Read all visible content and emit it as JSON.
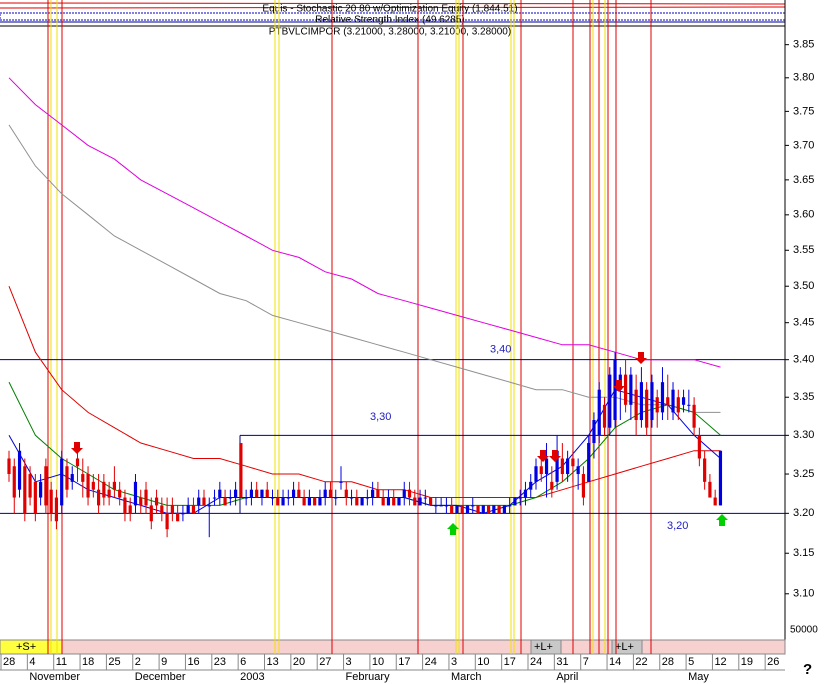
{
  "chart_data": {
    "type": "candlestick",
    "header": [
      "Equis - Stochastic 20 80 w/Optimization Equity (1,844.51)",
      "Relative Strength Index (49.6285)",
      "PTBVLCIMPOR (3.21000, 3.28000, 3.21000, 3.28000)"
    ],
    "categories": [
      "28",
      "4",
      "11",
      "18",
      "25",
      "2",
      "9",
      "16",
      "23",
      "6",
      "13",
      "20",
      "27",
      "3",
      "10",
      "17",
      "24",
      "3",
      "10",
      "17",
      "24",
      "31",
      "7",
      "14",
      "22",
      "28",
      "5",
      "12",
      "19",
      "26"
    ],
    "months": [
      null,
      "November",
      null,
      null,
      null,
      "December",
      null,
      null,
      null,
      "2003",
      null,
      null,
      null,
      "February",
      null,
      null,
      null,
      "March",
      null,
      null,
      null,
      "April",
      null,
      null,
      null,
      null,
      "May",
      null,
      null,
      null
    ],
    "log_scale": true,
    "ylim": [
      3.05,
      3.88
    ],
    "yticks": [
      3.85,
      {
        "value": 3.8,
        "label": "3.80"
      },
      3.75,
      {
        "value": 3.7,
        "label": "3.70"
      },
      3.65,
      {
        "value": 3.6,
        "label": "3.60"
      },
      3.55,
      {
        "value": 3.5,
        "label": "3.50"
      },
      3.45,
      {
        "value": 3.4,
        "label": "3.40"
      },
      3.35,
      {
        "value": 3.3,
        "label": "3.30"
      },
      3.25,
      {
        "value": 3.2,
        "label": "3.20"
      },
      3.15,
      {
        "value": 3.1,
        "label": "3.10"
      }
    ],
    "up_color": "#0000e0",
    "down_color": "#e00000",
    "ohlc": [
      [
        3.27,
        3.28,
        3.24,
        3.25
      ],
      [
        3.26,
        3.27,
        3.2,
        3.22
      ],
      [
        3.23,
        3.29,
        3.22,
        3.28
      ],
      [
        3.26,
        3.27,
        3.19,
        3.2
      ],
      [
        3.25,
        3.26,
        3.21,
        3.22
      ],
      [
        3.24,
        3.25,
        3.19,
        3.2
      ],
      [
        3.22,
        3.25,
        3.21,
        3.24
      ],
      [
        3.26,
        3.27,
        3.2,
        3.21
      ],
      [
        3.23,
        3.24,
        3.19,
        3.2
      ],
      [
        3.22,
        3.23,
        3.18,
        3.19
      ],
      [
        3.21,
        3.28,
        3.2,
        3.27
      ],
      [
        3.26,
        3.27,
        3.22,
        3.23
      ],
      [
        3.24,
        3.26,
        3.23,
        3.25
      ],
      [
        3.27,
        3.29,
        3.24,
        3.26
      ],
      [
        3.25,
        3.27,
        3.22,
        3.24
      ],
      [
        3.25,
        3.26,
        3.21,
        3.22
      ],
      [
        3.24,
        3.25,
        3.22,
        3.23
      ],
      [
        3.23,
        3.25,
        3.2,
        3.21
      ],
      [
        3.24,
        3.25,
        3.21,
        3.22
      ],
      [
        3.23,
        3.24,
        3.21,
        3.22
      ],
      [
        3.24,
        3.26,
        3.22,
        3.23
      ],
      [
        3.23,
        3.24,
        3.21,
        3.22
      ],
      [
        3.22,
        3.23,
        3.19,
        3.2
      ],
      [
        3.21,
        3.22,
        3.19,
        3.2
      ],
      [
        3.21,
        3.25,
        3.2,
        3.24
      ],
      [
        3.22,
        3.23,
        3.2,
        3.21
      ],
      [
        3.23,
        3.24,
        3.2,
        3.21
      ],
      [
        3.21,
        3.22,
        3.18,
        3.19
      ],
      [
        3.22,
        3.23,
        3.2,
        3.21
      ],
      [
        3.21,
        3.22,
        3.19,
        3.2
      ],
      [
        3.2,
        3.22,
        3.17,
        3.18
      ],
      [
        3.21,
        3.22,
        3.19,
        3.2
      ],
      [
        3.2,
        3.21,
        3.19,
        3.19
      ],
      [
        3.2,
        3.21,
        3.19,
        3.2
      ],
      [
        3.2,
        3.22,
        3.2,
        3.21
      ],
      [
        3.21,
        3.22,
        3.2,
        3.2
      ],
      [
        3.21,
        3.23,
        3.2,
        3.22
      ],
      [
        3.22,
        3.23,
        3.21,
        3.21
      ],
      [
        3.21,
        3.22,
        3.17,
        3.21
      ],
      [
        3.22,
        3.23,
        3.21,
        3.22
      ],
      [
        3.22,
        3.24,
        3.21,
        3.23
      ],
      [
        3.22,
        3.23,
        3.21,
        3.21
      ],
      [
        3.22,
        3.23,
        3.21,
        3.22
      ],
      [
        3.22,
        3.24,
        3.21,
        3.23
      ],
      [
        3.29,
        3.29,
        3.22,
        3.22
      ],
      [
        3.22,
        3.23,
        3.21,
        3.22
      ],
      [
        3.22,
        3.24,
        3.21,
        3.23
      ],
      [
        3.23,
        3.24,
        3.22,
        3.22
      ],
      [
        3.22,
        3.23,
        3.21,
        3.23
      ],
      [
        3.23,
        3.24,
        3.22,
        3.22
      ],
      [
        3.22,
        3.23,
        3.21,
        3.22
      ],
      [
        3.22,
        3.23,
        3.21,
        3.21
      ],
      [
        3.21,
        3.23,
        3.21,
        3.22
      ],
      [
        3.22,
        3.23,
        3.21,
        3.22
      ],
      [
        3.22,
        3.24,
        3.21,
        3.23
      ],
      [
        3.23,
        3.24,
        3.22,
        3.22
      ],
      [
        3.22,
        3.23,
        3.21,
        3.21
      ],
      [
        3.21,
        3.23,
        3.21,
        3.22
      ],
      [
        3.22,
        3.22,
        3.21,
        3.21
      ],
      [
        3.21,
        3.23,
        3.21,
        3.22
      ],
      [
        3.22,
        3.24,
        3.21,
        3.23
      ],
      [
        3.23,
        3.24,
        3.22,
        3.22
      ],
      [
        3.22,
        3.23,
        3.21,
        3.22
      ],
      [
        3.24,
        3.26,
        3.23,
        3.24
      ],
      [
        3.23,
        3.24,
        3.21,
        3.22
      ],
      [
        3.22,
        3.23,
        3.21,
        3.22
      ],
      [
        3.22,
        3.23,
        3.21,
        3.21
      ],
      [
        3.21,
        3.22,
        3.21,
        3.22
      ],
      [
        3.22,
        3.23,
        3.21,
        3.22
      ],
      [
        3.22,
        3.24,
        3.21,
        3.23
      ],
      [
        3.23,
        3.24,
        3.22,
        3.22
      ],
      [
        3.22,
        3.23,
        3.21,
        3.21
      ],
      [
        3.21,
        3.23,
        3.21,
        3.22
      ],
      [
        3.22,
        3.23,
        3.21,
        3.21
      ],
      [
        3.21,
        3.22,
        3.21,
        3.22
      ],
      [
        3.22,
        3.24,
        3.21,
        3.23
      ],
      [
        3.23,
        3.24,
        3.21,
        3.22
      ],
      [
        3.22,
        3.23,
        3.21,
        3.21
      ],
      [
        3.21,
        3.23,
        3.21,
        3.22
      ],
      [
        3.22,
        3.23,
        3.21,
        3.22
      ],
      [
        3.22,
        3.22,
        3.21,
        3.21
      ],
      [
        3.21,
        3.22,
        3.2,
        3.21
      ],
      [
        3.21,
        3.22,
        3.21,
        3.21
      ],
      [
        3.21,
        3.22,
        3.2,
        3.21
      ],
      [
        3.21,
        3.22,
        3.2,
        3.2
      ],
      [
        3.2,
        3.21,
        3.2,
        3.21
      ],
      [
        3.21,
        3.21,
        3.2,
        3.2
      ],
      [
        3.2,
        3.21,
        3.2,
        3.21
      ],
      [
        3.21,
        3.22,
        3.2,
        3.21
      ],
      [
        3.21,
        3.21,
        3.2,
        3.2
      ],
      [
        3.2,
        3.21,
        3.2,
        3.21
      ],
      [
        3.21,
        3.21,
        3.2,
        3.2
      ],
      [
        3.2,
        3.21,
        3.2,
        3.21
      ],
      [
        3.21,
        3.21,
        3.2,
        3.2
      ],
      [
        3.2,
        3.21,
        3.2,
        3.21
      ],
      [
        3.21,
        3.22,
        3.2,
        3.21
      ],
      [
        3.21,
        3.22,
        3.21,
        3.22
      ],
      [
        3.22,
        3.23,
        3.21,
        3.22
      ],
      [
        3.22,
        3.24,
        3.21,
        3.23
      ],
      [
        3.23,
        3.25,
        3.22,
        3.24
      ],
      [
        3.24,
        3.27,
        3.23,
        3.26
      ],
      [
        3.26,
        3.28,
        3.24,
        3.25
      ],
      [
        3.25,
        3.29,
        3.22,
        3.27
      ],
      [
        3.24,
        3.26,
        3.22,
        3.23
      ],
      [
        3.24,
        3.3,
        3.23,
        3.28
      ],
      [
        3.27,
        3.29,
        3.24,
        3.25
      ],
      [
        3.25,
        3.28,
        3.24,
        3.27
      ],
      [
        3.27,
        3.28,
        3.24,
        3.26
      ],
      [
        3.25,
        3.27,
        3.23,
        3.26
      ],
      [
        3.25,
        3.26,
        3.21,
        3.22
      ],
      [
        3.24,
        3.3,
        3.24,
        3.29
      ],
      [
        3.29,
        3.33,
        3.27,
        3.32
      ],
      [
        3.3,
        3.37,
        3.29,
        3.36
      ],
      [
        3.34,
        3.35,
        3.3,
        3.31
      ],
      [
        3.31,
        3.39,
        3.3,
        3.38
      ],
      [
        3.32,
        3.41,
        3.31,
        3.4
      ],
      [
        3.36,
        3.39,
        3.32,
        3.38
      ],
      [
        3.38,
        3.4,
        3.33,
        3.34
      ],
      [
        3.34,
        3.39,
        3.32,
        3.38
      ],
      [
        3.36,
        3.38,
        3.3,
        3.32
      ],
      [
        3.32,
        3.39,
        3.31,
        3.37
      ],
      [
        3.36,
        3.37,
        3.3,
        3.31
      ],
      [
        3.32,
        3.38,
        3.31,
        3.37
      ],
      [
        3.35,
        3.36,
        3.31,
        3.33
      ],
      [
        3.33,
        3.39,
        3.32,
        3.37
      ],
      [
        3.35,
        3.38,
        3.32,
        3.34
      ],
      [
        3.33,
        3.37,
        3.32,
        3.36
      ],
      [
        3.35,
        3.36,
        3.32,
        3.33
      ],
      [
        3.34,
        3.36,
        3.33,
        3.35
      ],
      [
        3.34,
        3.36,
        3.33,
        3.34
      ],
      [
        3.34,
        3.35,
        3.3,
        3.31
      ],
      [
        3.3,
        3.31,
        3.26,
        3.27
      ],
      [
        3.27,
        3.28,
        3.23,
        3.24
      ],
      [
        3.24,
        3.25,
        3.22,
        3.22
      ],
      [
        3.22,
        3.23,
        3.21,
        3.21
      ],
      [
        3.21,
        3.28,
        3.21,
        3.28
      ]
    ],
    "series": [
      {
        "color": "#e000e0",
        "values": [
          3.8,
          3.76,
          3.73,
          3.7,
          3.68,
          3.65,
          3.63,
          3.61,
          3.59,
          3.57,
          3.55,
          3.54,
          3.52,
          3.51,
          3.49,
          3.48,
          3.47,
          3.46,
          3.45,
          3.44,
          3.43,
          3.42,
          3.42,
          3.41,
          3.4,
          3.4,
          3.4,
          3.39,
          null,
          null
        ]
      },
      {
        "color": "#909090",
        "values": [
          3.73,
          3.67,
          3.63,
          3.6,
          3.57,
          3.55,
          3.53,
          3.51,
          3.49,
          3.48,
          3.46,
          3.45,
          3.44,
          3.43,
          3.42,
          3.41,
          3.4,
          3.39,
          3.38,
          3.37,
          3.36,
          3.36,
          3.35,
          3.35,
          3.34,
          3.34,
          3.33,
          3.33,
          null,
          null
        ]
      },
      {
        "color": "#e00000",
        "values": [
          3.5,
          3.41,
          3.36,
          3.33,
          3.31,
          3.29,
          3.28,
          3.27,
          3.27,
          3.26,
          3.25,
          3.25,
          3.24,
          3.24,
          3.23,
          3.23,
          3.22,
          3.22,
          3.22,
          3.22,
          3.22,
          3.23,
          3.24,
          3.25,
          3.26,
          3.27,
          3.28,
          3.28,
          null,
          null
        ]
      },
      {
        "color": "#008000",
        "values": [
          3.37,
          3.3,
          3.27,
          3.25,
          3.23,
          3.22,
          3.21,
          3.21,
          3.21,
          3.22,
          3.22,
          3.22,
          3.22,
          3.22,
          3.22,
          3.22,
          3.21,
          3.21,
          3.21,
          3.21,
          3.22,
          3.24,
          3.27,
          3.31,
          3.33,
          3.34,
          3.33,
          3.3,
          null,
          null
        ]
      },
      {
        "color": "#0000e0",
        "values": [
          3.3,
          3.24,
          3.25,
          3.23,
          3.22,
          3.21,
          3.2,
          3.2,
          3.22,
          3.22,
          3.22,
          3.22,
          3.22,
          3.22,
          3.22,
          3.22,
          3.21,
          3.21,
          3.2,
          3.21,
          3.24,
          3.26,
          3.3,
          3.36,
          3.35,
          3.34,
          3.3,
          3.27,
          null,
          null
        ]
      }
    ],
    "hlines": [
      {
        "value": 3.4,
        "label": "3,40"
      },
      {
        "value": 3.3,
        "label": "3,30"
      },
      {
        "value": 3.2,
        "label": "3,20"
      }
    ],
    "markers": [
      "+S+",
      "+L+",
      "+L+"
    ],
    "volume_label": 50000,
    "help": "?"
  }
}
